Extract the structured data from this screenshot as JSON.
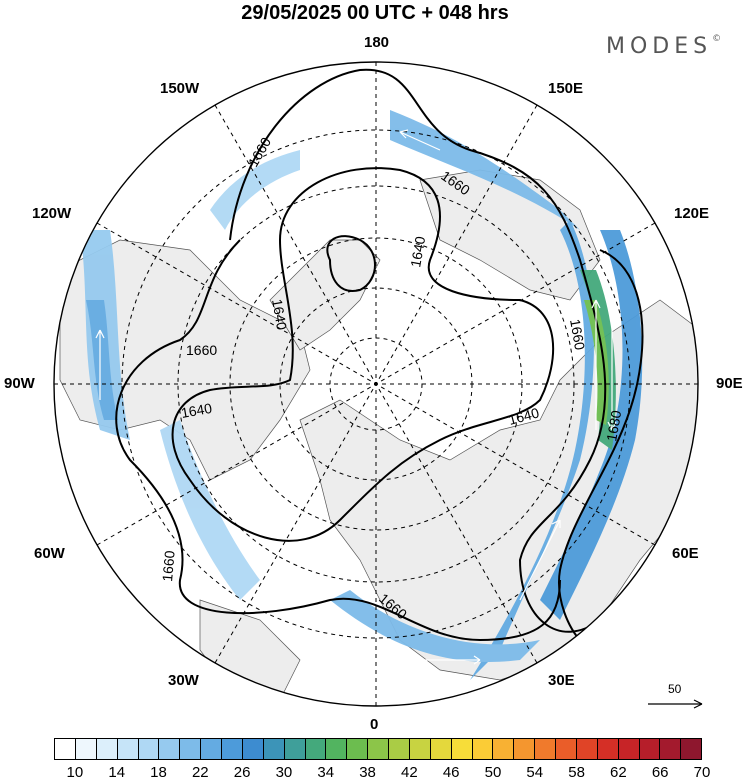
{
  "header": {
    "title": "29/05/2025  00 UTC  + 048 hrs",
    "brand": "MODES"
  },
  "longitude_labels": {
    "lon_180": "180",
    "lon_150w": "150W",
    "lon_150e": "150E",
    "lon_120w": "120W",
    "lon_120e": "120E",
    "lon_90w": "90W",
    "lon_90e": "90E",
    "lon_60w": "60W",
    "lon_60e": "60E",
    "lon_30w": "30W",
    "lon_30e": "30E",
    "lon_0": "0"
  },
  "contour_labels": {
    "c1": "1660",
    "c2": "1660",
    "c3": "1640",
    "c4": "1640",
    "c5": "1660",
    "c6": "1640",
    "c7": "1640",
    "c8": "1660",
    "c9": "1680",
    "c10": "1660",
    "c11": "1660"
  },
  "reference_vector": {
    "label": "50"
  },
  "colorbar": {
    "colors": [
      "#ffffff",
      "#eef7fd",
      "#dceffb",
      "#c6e4f8",
      "#afd8f4",
      "#96caef",
      "#7dbbe9",
      "#64abe2",
      "#4d9bda",
      "#3d8cd0",
      "#3c94b8",
      "#3f9f9a",
      "#44a97c",
      "#52b460",
      "#6cbd4f",
      "#8cc549",
      "#aacc45",
      "#c8d341",
      "#e4d83c",
      "#f7dd39",
      "#fbcc36",
      "#f8b133",
      "#f4962f",
      "#f07a2c",
      "#ea5d29",
      "#e04427",
      "#d52f26",
      "#c72427",
      "#b61e2a",
      "#a31a2d",
      "#8e172e"
    ],
    "labels": [
      "10",
      "14",
      "18",
      "22",
      "26",
      "30",
      "34",
      "38",
      "42",
      "46",
      "50",
      "54",
      "58",
      "62",
      "66",
      "70"
    ]
  }
}
